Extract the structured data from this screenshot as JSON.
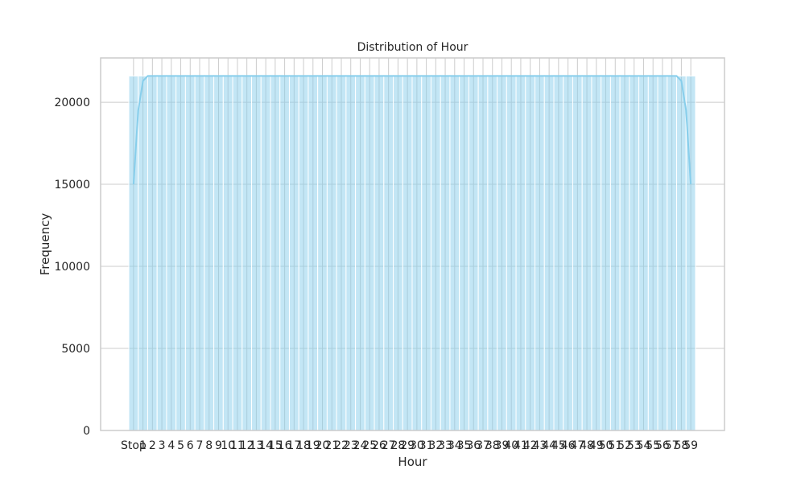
{
  "chart_data": {
    "type": "bar",
    "title": "Distribution of Hour",
    "xlabel": "Hour",
    "ylabel": "Frequency",
    "ylim": [
      0,
      22700
    ],
    "yticks": [
      0,
      5000,
      10000,
      15000,
      20000
    ],
    "grid": true,
    "legend": "none",
    "colors": {
      "bar_fill": "#87ceeb",
      "bar_edge": "#ffffff",
      "kde_line": "#87ceeb",
      "grid": "#cccccc",
      "axes_edge": "#cccccc"
    },
    "categories": [
      "Stop",
      "1",
      "2",
      "3",
      "4",
      "5",
      "6",
      "7",
      "8",
      "9",
      "10",
      "11",
      "12",
      "13",
      "14",
      "15",
      "16",
      "17",
      "18",
      "19",
      "20",
      "21",
      "22",
      "23",
      "24",
      "25",
      "26",
      "27",
      "28",
      "29",
      "30",
      "31",
      "32",
      "33",
      "34",
      "35",
      "36",
      "37",
      "38",
      "39",
      "40",
      "41",
      "42",
      "43",
      "44",
      "45",
      "46",
      "47",
      "48",
      "49",
      "50",
      "51",
      "52",
      "53",
      "54",
      "55",
      "56",
      "57",
      "58",
      "59"
    ],
    "values": [
      21600,
      21600,
      21600,
      21600,
      21600,
      21600,
      21600,
      21600,
      21600,
      21600,
      21600,
      21600,
      21600,
      21600,
      21600,
      21600,
      21600,
      21600,
      21600,
      21600,
      21600,
      21600,
      21600,
      21600,
      21600,
      21600,
      21600,
      21600,
      21600,
      21600,
      21600,
      21600,
      21600,
      21600,
      21600,
      21600,
      21600,
      21600,
      21600,
      21600,
      21600,
      21600,
      21600,
      21600,
      21600,
      21600,
      21600,
      21600,
      21600,
      21600,
      21600,
      21600,
      21600,
      21600,
      21600,
      21600,
      21600,
      21600,
      21600,
      21600
    ],
    "kde": {
      "x": [
        0,
        0.5,
        1,
        1.5,
        2,
        57,
        57.5,
        58,
        58.5,
        59
      ],
      "y": [
        15000,
        19500,
        21300,
        21600,
        21600,
        21600,
        21600,
        21300,
        19500,
        15000
      ]
    }
  }
}
